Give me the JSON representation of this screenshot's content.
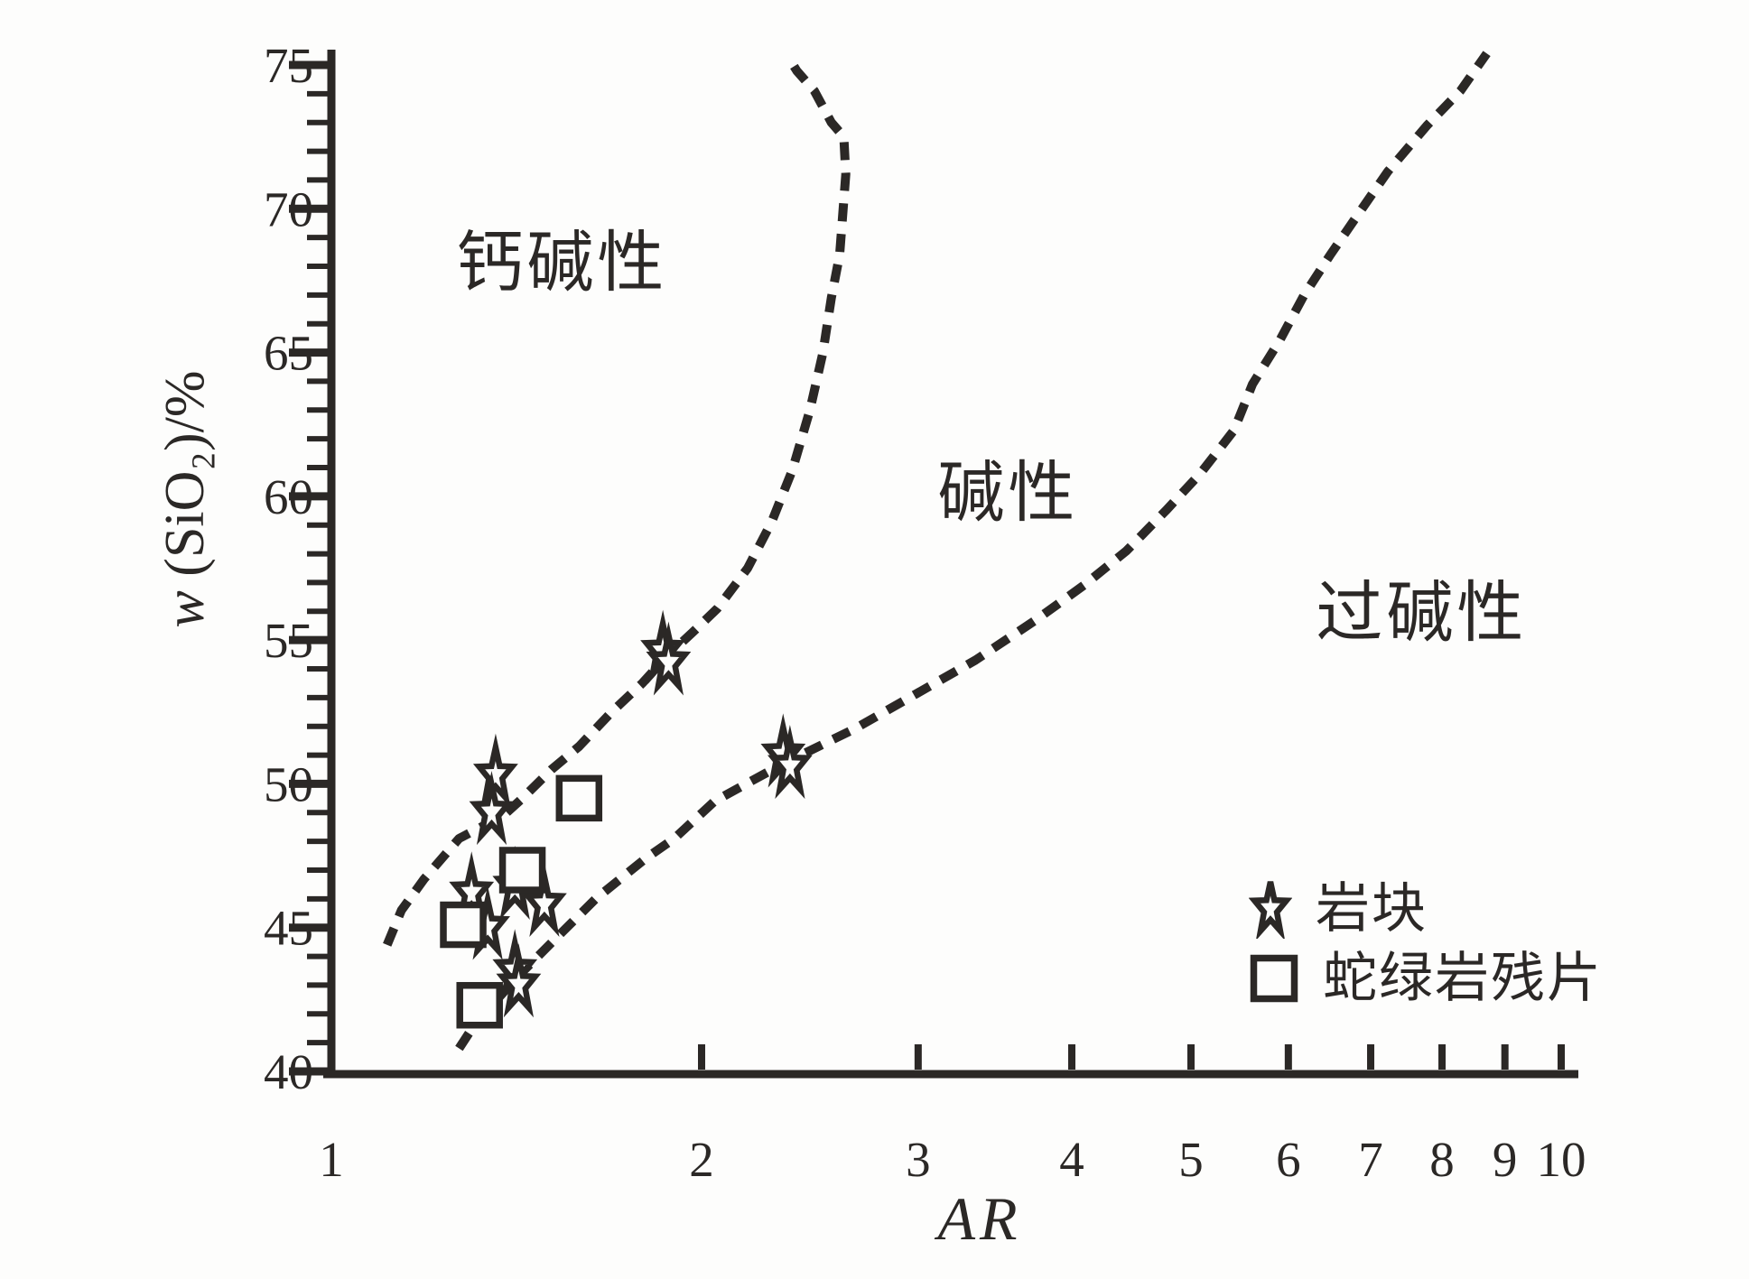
{
  "colors": {
    "ink": "#2b2826",
    "background": "#fdfdfc"
  },
  "chart_data": {
    "type": "scatter",
    "title": "",
    "xlabel": "AR",
    "ylabel": "w (SiO₂)/%",
    "ylabel_var": "w",
    "ylabel_rest": " (SiO₂)/%",
    "x_scale": "log",
    "xlim": [
      1,
      10
    ],
    "ylim": [
      40,
      75
    ],
    "x_ticks": [
      1,
      2,
      3,
      4,
      5,
      6,
      7,
      8,
      9,
      10
    ],
    "y_major_ticks": [
      40,
      45,
      50,
      55,
      60,
      65,
      70,
      75
    ],
    "y_minor_step": 1,
    "grid": false,
    "legend": {
      "position": "lower-right",
      "items": [
        {
          "marker": "star",
          "label": "岩块"
        },
        {
          "marker": "square",
          "label": "蛇绿岩残片"
        }
      ]
    },
    "regions": [
      {
        "label": "钙碱性",
        "ar": 1.54,
        "sio2": 68.1
      },
      {
        "label": "碱性",
        "ar": 3.55,
        "sio2": 60.1
      },
      {
        "label": "过碱性",
        "ar": 7.7,
        "sio2": 55.9
      }
    ],
    "series": [
      {
        "name": "岩块",
        "marker": "star",
        "points": [
          [
            1.36,
            50.3
          ],
          [
            1.35,
            49.0
          ],
          [
            1.86,
            54.6
          ],
          [
            1.88,
            54.2
          ],
          [
            2.33,
            51.0
          ],
          [
            2.36,
            50.6
          ],
          [
            1.3,
            46.2
          ],
          [
            1.41,
            46.4
          ],
          [
            1.49,
            45.8
          ],
          [
            1.34,
            45.0
          ],
          [
            1.41,
            43.5
          ],
          [
            1.42,
            43.0
          ]
        ]
      },
      {
        "name": "蛇绿岩残片",
        "marker": "square",
        "points": [
          [
            1.59,
            49.5
          ],
          [
            1.43,
            47.0
          ],
          [
            1.28,
            45.1
          ],
          [
            1.32,
            42.3
          ]
        ]
      }
    ],
    "boundaries": [
      {
        "name": "calc-alkaline-alkaline-boundary",
        "style": "dashed",
        "points": [
          [
            1.11,
            44.4
          ],
          [
            1.14,
            45.6
          ],
          [
            1.19,
            46.7
          ],
          [
            1.27,
            48.1
          ],
          [
            1.38,
            48.9
          ],
          [
            1.43,
            49.5
          ],
          [
            1.51,
            50.5
          ],
          [
            1.59,
            51.3
          ],
          [
            1.69,
            52.5
          ],
          [
            1.79,
            53.5
          ],
          [
            1.87,
            54.4
          ],
          [
            1.97,
            55.3
          ],
          [
            2.06,
            56.1
          ],
          [
            2.18,
            57.5
          ],
          [
            2.28,
            59.1
          ],
          [
            2.37,
            60.9
          ],
          [
            2.45,
            63.0
          ],
          [
            2.51,
            65.0
          ],
          [
            2.55,
            66.9
          ],
          [
            2.59,
            68.4
          ],
          [
            2.62,
            71.2
          ],
          [
            2.61,
            72.5
          ],
          [
            2.55,
            73.0
          ],
          [
            2.47,
            74.1
          ],
          [
            2.39,
            74.8
          ],
          [
            2.35,
            75.3
          ]
        ]
      },
      {
        "name": "alkaline-peralkaline-boundary",
        "style": "dashed",
        "points": [
          [
            1.27,
            40.8
          ],
          [
            1.32,
            41.9
          ],
          [
            1.41,
            43.2
          ],
          [
            1.52,
            44.6
          ],
          [
            1.64,
            46.0
          ],
          [
            1.8,
            47.4
          ],
          [
            1.9,
            48.1
          ],
          [
            2.05,
            49.4
          ],
          [
            2.33,
            50.7
          ],
          [
            2.66,
            51.9
          ],
          [
            2.98,
            53.1
          ],
          [
            3.34,
            54.3
          ],
          [
            3.74,
            55.7
          ],
          [
            4.09,
            56.9
          ],
          [
            4.43,
            58.1
          ],
          [
            4.77,
            59.5
          ],
          [
            5.09,
            60.8
          ],
          [
            5.42,
            62.3
          ],
          [
            5.61,
            63.9
          ],
          [
            5.9,
            65.4
          ],
          [
            6.18,
            67.0
          ],
          [
            6.49,
            68.4
          ],
          [
            6.86,
            69.9
          ],
          [
            7.23,
            71.3
          ],
          [
            7.78,
            72.9
          ],
          [
            8.28,
            74.1
          ],
          [
            8.7,
            75.4
          ]
        ]
      }
    ]
  }
}
